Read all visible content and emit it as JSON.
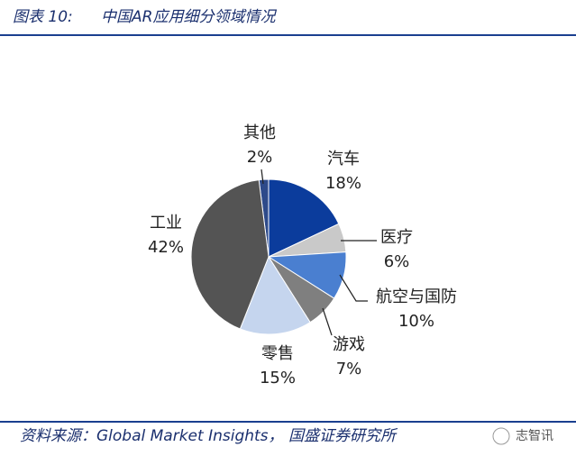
{
  "header": {
    "figure_label": "图表 10:",
    "title": "中国AR应用细分领域情况"
  },
  "chart_data": {
    "type": "pie",
    "categories": [
      "其他",
      "汽车",
      "医疗",
      "航空与国防",
      "游戏",
      "零售",
      "工业"
    ],
    "values": [
      2,
      18,
      6,
      10,
      7,
      15,
      42
    ],
    "value_labels": [
      "2%",
      "18%",
      "6%",
      "10%",
      "7%",
      "15%",
      "42%"
    ],
    "colors": [
      "#2d4a8a",
      "#0b3c9c",
      "#c9c9c9",
      "#4a7fd0",
      "#7f7f7f",
      "#c5d5ee",
      "#545454"
    ]
  },
  "footer": {
    "source": "资料来源：Global Market Insights， 国盛证券研究所",
    "watermark": "志智讯"
  }
}
